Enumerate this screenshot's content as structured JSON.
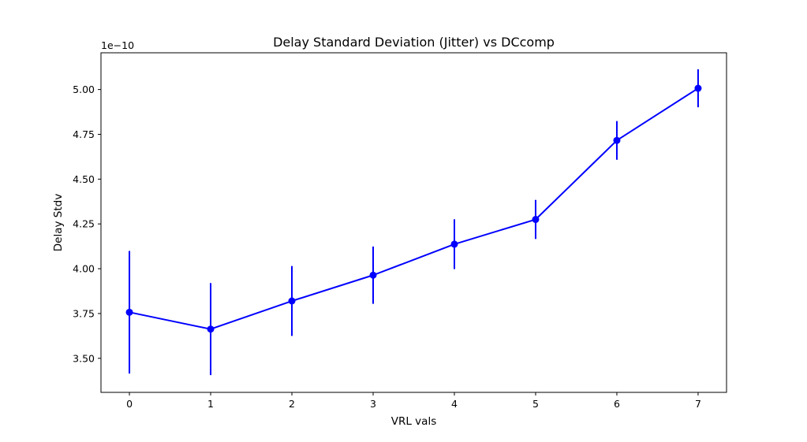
{
  "chart_data": {
    "type": "line",
    "title": "Delay Standard Deviation (Jitter) vs DCcomp",
    "xlabel": "VRL vals",
    "ylabel": "Delay Stdv",
    "y_offset_label": "1e−10",
    "x": [
      0,
      1,
      2,
      3,
      4,
      5,
      6,
      7
    ],
    "x_tick_labels": [
      "0",
      "1",
      "2",
      "3",
      "4",
      "5",
      "6",
      "7"
    ],
    "y_ticks": [
      3.5,
      3.75,
      4.0,
      4.25,
      4.5,
      4.75,
      5.0
    ],
    "y_tick_labels": [
      "3.50",
      "3.75",
      "4.00",
      "4.25",
      "4.50",
      "4.75",
      "5.00"
    ],
    "xlim": [
      -0.35,
      7.35
    ],
    "ylim": [
      3.31,
      5.205
    ],
    "series": [
      {
        "values": [
          3.757,
          3.663,
          3.82,
          3.964,
          4.137,
          4.275,
          4.716,
          5.007
        ],
        "errors": [
          0.342,
          0.257,
          0.195,
          0.16,
          0.139,
          0.109,
          0.108,
          0.106
        ],
        "color": "#0000ff",
        "marker": "circle"
      }
    ],
    "grid": false
  }
}
